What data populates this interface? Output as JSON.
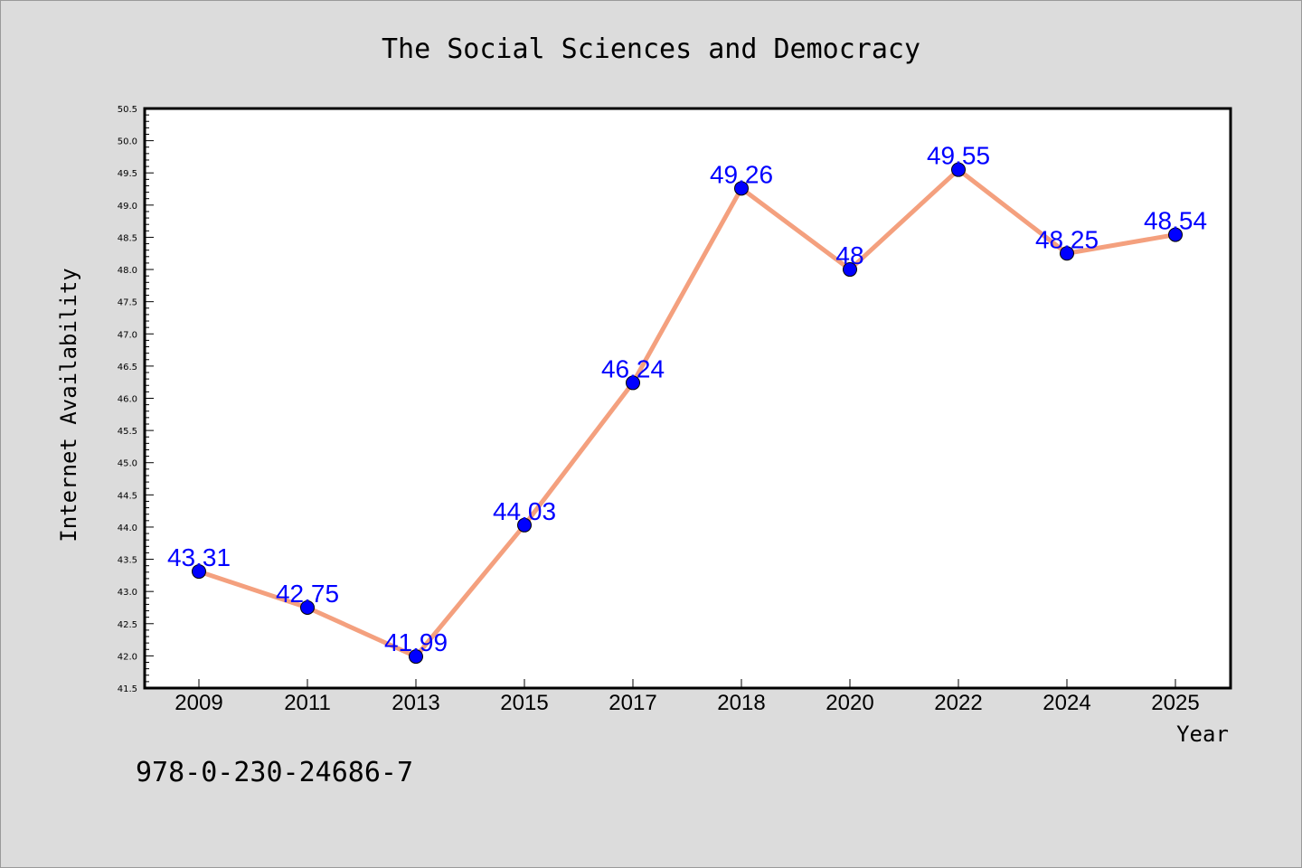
{
  "chart_data": {
    "type": "line",
    "title": "The Social Sciences and Democracy",
    "xlabel": "Year",
    "ylabel": "Internet Availability",
    "categories": [
      "2009",
      "2011",
      "2013",
      "2015",
      "2017",
      "2018",
      "2020",
      "2022",
      "2024",
      "2025"
    ],
    "values": [
      43.31,
      42.75,
      41.99,
      44.03,
      46.24,
      49.26,
      48,
      49.55,
      48.25,
      48.54
    ],
    "data_labels": [
      "43.31",
      "42.75",
      "41.99",
      "44.03",
      "46.24",
      "49.26",
      "48",
      "49.55",
      "48.25",
      "48.54"
    ],
    "ylim": [
      41.5,
      50.5
    ],
    "yticks": [
      "41.5",
      "42.0",
      "42.5",
      "43.0",
      "43.5",
      "44.0",
      "44.5",
      "45.0",
      "45.5",
      "46.0",
      "46.5",
      "47.0",
      "47.5",
      "48.0",
      "48.5",
      "49.0",
      "49.5",
      "50.0",
      "50.5"
    ],
    "grid": false,
    "line_color": "#f4a07e",
    "marker_color": "#0000ff",
    "label_color": "#0000ff",
    "annotation": "978-0-230-24686-7"
  }
}
